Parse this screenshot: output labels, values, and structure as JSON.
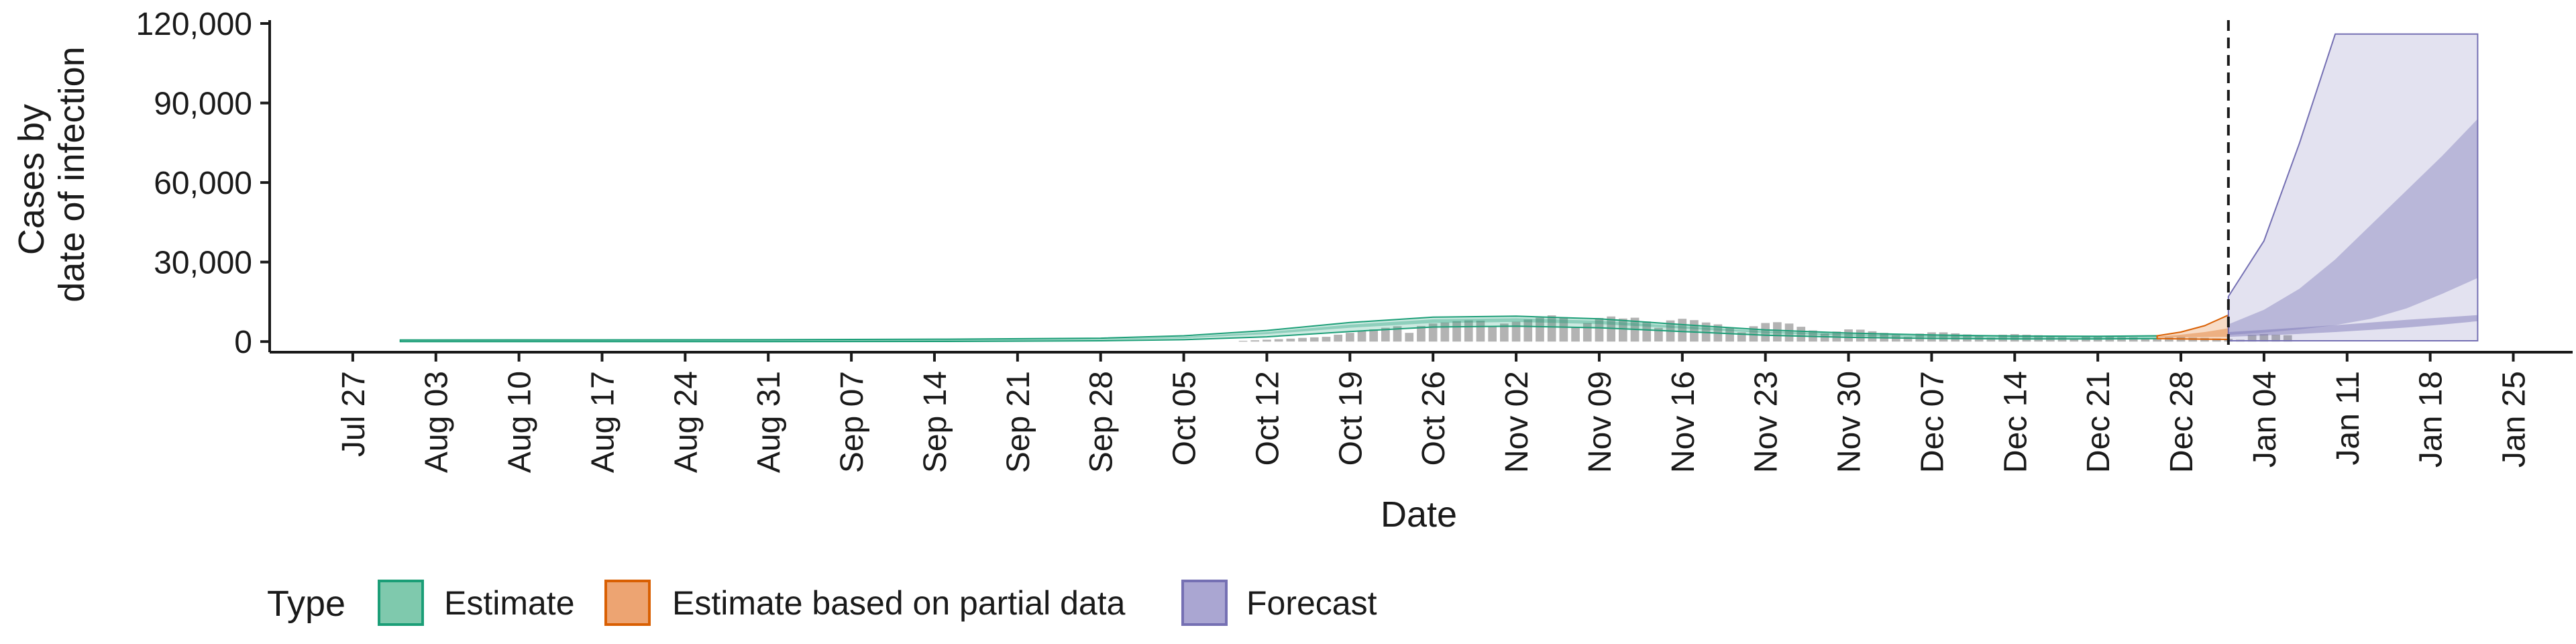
{
  "chart_data": {
    "type": "area",
    "xlabel": "Date",
    "ylabel": [
      "Cases by",
      "date of infection"
    ],
    "ylim": [
      0,
      120000
    ],
    "yticks": [
      0,
      30000,
      60000,
      90000,
      120000
    ],
    "ytick_labels": [
      "0",
      "30,000",
      "60,000",
      "90,000",
      "120,000"
    ],
    "xlim": [
      "2020-07-20",
      "2021-01-30"
    ],
    "xticks": [
      "2020-07-27",
      "2020-08-03",
      "2020-08-10",
      "2020-08-17",
      "2020-08-24",
      "2020-08-31",
      "2020-09-07",
      "2020-09-14",
      "2020-09-21",
      "2020-09-28",
      "2020-10-05",
      "2020-10-12",
      "2020-10-19",
      "2020-10-26",
      "2020-11-02",
      "2020-11-09",
      "2020-11-16",
      "2020-11-23",
      "2020-11-30",
      "2020-12-07",
      "2020-12-14",
      "2020-12-21",
      "2020-12-28",
      "2021-01-04",
      "2021-01-11",
      "2021-01-18",
      "2021-01-25"
    ],
    "xtick_labels": [
      "Jul 27",
      "Aug 03",
      "Aug 10",
      "Aug 17",
      "Aug 24",
      "Aug 31",
      "Sep 07",
      "Sep 14",
      "Sep 21",
      "Sep 28",
      "Oct 05",
      "Oct 12",
      "Oct 19",
      "Oct 26",
      "Nov 02",
      "Nov 09",
      "Nov 16",
      "Nov 23",
      "Nov 30",
      "Dec 07",
      "Dec 14",
      "Dec 21",
      "Dec 28",
      "Jan 04",
      "Jan 11",
      "Jan 18",
      "Jan 25"
    ],
    "forecast_cutoff": "2021-01-01",
    "legend": {
      "title": "Type",
      "position": "bottom",
      "items": [
        {
          "label": "Estimate",
          "fill": "#7fc9ad",
          "stroke": "#1b9e77"
        },
        {
          "label": "Estimate based on partial data",
          "fill": "#eda472",
          "stroke": "#d95f02"
        },
        {
          "label": "Forecast",
          "fill": "#aaa6d2",
          "stroke": "#7570b3"
        }
      ]
    },
    "reported_cases": {
      "start": "2020-10-10",
      "values": [
        300,
        500,
        700,
        900,
        1100,
        1400,
        1600,
        1800,
        2600,
        3300,
        3900,
        4600,
        5200,
        5800,
        3300,
        5900,
        6800,
        7200,
        7700,
        8000,
        7900,
        5600,
        6800,
        7500,
        8300,
        9000,
        9900,
        9200,
        5500,
        7000,
        8900,
        9500,
        8700,
        9000,
        7600,
        5200,
        8000,
        8600,
        8100,
        7200,
        6500,
        5400,
        3500,
        5800,
        7000,
        7300,
        6800,
        5600,
        4200,
        3100,
        3800,
        4600,
        4500,
        3900,
        3300,
        2500,
        1800,
        3000,
        3500,
        3500,
        3100,
        2700,
        2200,
        1500,
        2600,
        2800,
        2600,
        2400,
        2100,
        1700,
        1200,
        1900,
        2100,
        1900,
        1700,
        1600,
        1300,
        1000,
        1600,
        1700,
        1500,
        1400,
        1200,
        1000,
        700,
        2500,
        2800,
        2600,
        2400
      ]
    },
    "series": [
      {
        "name": "Estimate",
        "color": "#1b9e77",
        "x": [
          "2020-07-31",
          "2020-08-31",
          "2020-09-15",
          "2020-09-28",
          "2020-10-05",
          "2020-10-12",
          "2020-10-19",
          "2020-10-26",
          "2020-11-02",
          "2020-11-09",
          "2020-11-16",
          "2020-11-23",
          "2020-11-30",
          "2020-12-07",
          "2020-12-14",
          "2020-12-21",
          "2020-12-26"
        ],
        "outer_lower": [
          0,
          0,
          50,
          300,
          700,
          1800,
          3800,
          5500,
          5800,
          5200,
          3800,
          2400,
          1600,
          1200,
          1000,
          1000,
          1100
        ],
        "outer_upper": [
          600,
          700,
          900,
          1300,
          2200,
          4200,
          7200,
          9200,
          9600,
          8600,
          6400,
          4400,
          3200,
          2500,
          2100,
          2000,
          2200
        ],
        "inner_lower": [
          100,
          150,
          300,
          700,
          1300,
          2800,
          5200,
          7000,
          7400,
          6600,
          4900,
          3200,
          2200,
          1700,
          1400,
          1400,
          1500
        ],
        "inner_upper": [
          400,
          450,
          600,
          1000,
          1800,
          3600,
          6400,
          8400,
          8800,
          7900,
          5800,
          3900,
          2800,
          2200,
          1800,
          1800,
          1900
        ]
      },
      {
        "name": "Estimate based on partial data",
        "color": "#d95f02",
        "x": [
          "2020-12-26",
          "2020-12-28",
          "2020-12-30",
          "2021-01-01"
        ],
        "outer_lower": [
          1100,
          1000,
          900,
          800
        ],
        "outer_upper": [
          2200,
          3600,
          6000,
          10000
        ],
        "inner_lower": [
          1500,
          1600,
          1700,
          1800
        ],
        "inner_upper": [
          1900,
          2600,
          3600,
          5000
        ]
      },
      {
        "name": "Forecast",
        "color": "#7570b3",
        "x": [
          "2021-01-01",
          "2021-01-04",
          "2021-01-07",
          "2021-01-10",
          "2021-01-13",
          "2021-01-16",
          "2021-01-19",
          "2021-01-22"
        ],
        "outer_lower": [
          300,
          300,
          300,
          300,
          300,
          300,
          300,
          300
        ],
        "outer_upper": [
          17000,
          38000,
          75000,
          116000,
          116000,
          116000,
          116000,
          116000
        ],
        "inner_lower": [
          2500,
          3400,
          4600,
          6200,
          8600,
          12500,
          18000,
          24000
        ],
        "inner_upper": [
          6500,
          12000,
          20000,
          31000,
          44000,
          57000,
          70000,
          84000
        ],
        "core_lower": [
          1800,
          2300,
          2900,
          3600,
          4400,
          5300,
          6400,
          7700
        ],
        "core_upper": [
          3600,
          4400,
          5300,
          6200,
          7200,
          8200,
          9100,
          10000
        ]
      }
    ]
  }
}
